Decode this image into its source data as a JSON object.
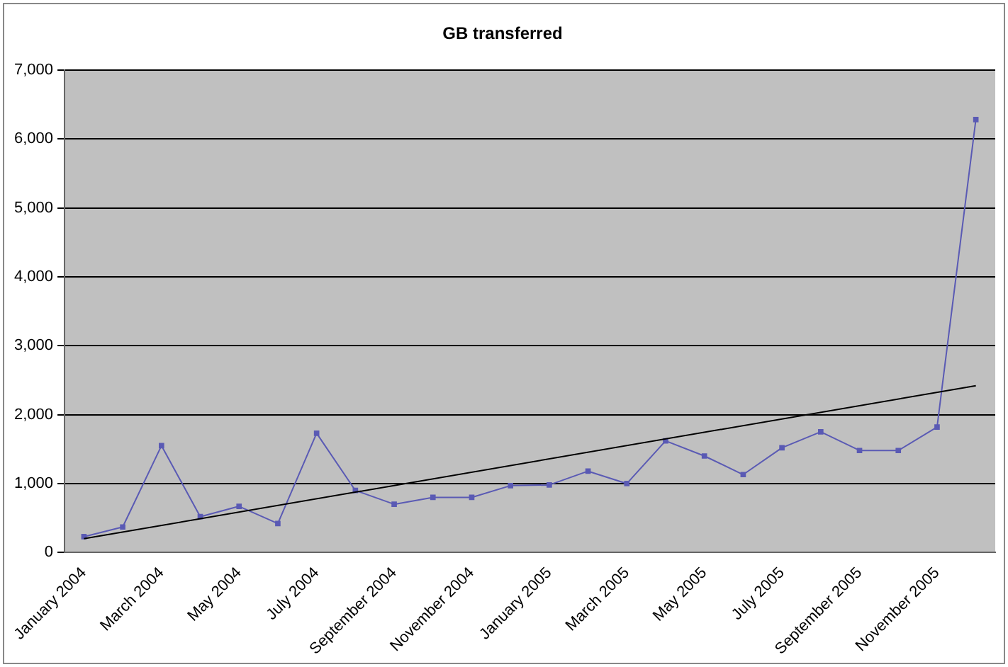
{
  "chart_data": {
    "type": "line",
    "title": "GB transferred",
    "categories": [
      "January 2004",
      null,
      "March 2004",
      null,
      "May 2004",
      null,
      "July 2004",
      null,
      "September 2004",
      null,
      "November 2004",
      null,
      "January 2005",
      null,
      "March 2005",
      null,
      "May 2005",
      null,
      "July 2005",
      null,
      "September 2005",
      null,
      "November 2005",
      null
    ],
    "series": [
      {
        "color": "#5a5ab4",
        "marker": "square",
        "values": [
          230,
          370,
          1550,
          520,
          670,
          420,
          1730,
          900,
          700,
          800,
          800,
          970,
          980,
          1180,
          1000,
          1620,
          1400,
          1130,
          1520,
          1750,
          1480,
          1480,
          1820,
          6280
        ]
      },
      {
        "type": "line",
        "color": "#000000",
        "marker": "none",
        "values": [
          200,
          null,
          null,
          null,
          null,
          null,
          null,
          null,
          null,
          null,
          null,
          null,
          null,
          null,
          null,
          null,
          null,
          null,
          null,
          null,
          null,
          null,
          null,
          2420
        ]
      }
    ],
    "ylim": [
      0,
      7000
    ],
    "yticks": [
      {
        "value": 0,
        "label": "0"
      },
      {
        "value": 1000,
        "label": "1,000"
      },
      {
        "value": 2000,
        "label": "2,000"
      },
      {
        "value": 3000,
        "label": "3,000"
      },
      {
        "value": 4000,
        "label": "4,000"
      },
      {
        "value": 5000,
        "label": "5,000"
      },
      {
        "value": 6000,
        "label": "6,000"
      },
      {
        "value": 7000,
        "label": "7,000"
      }
    ],
    "grid": "y",
    "legend": false
  }
}
